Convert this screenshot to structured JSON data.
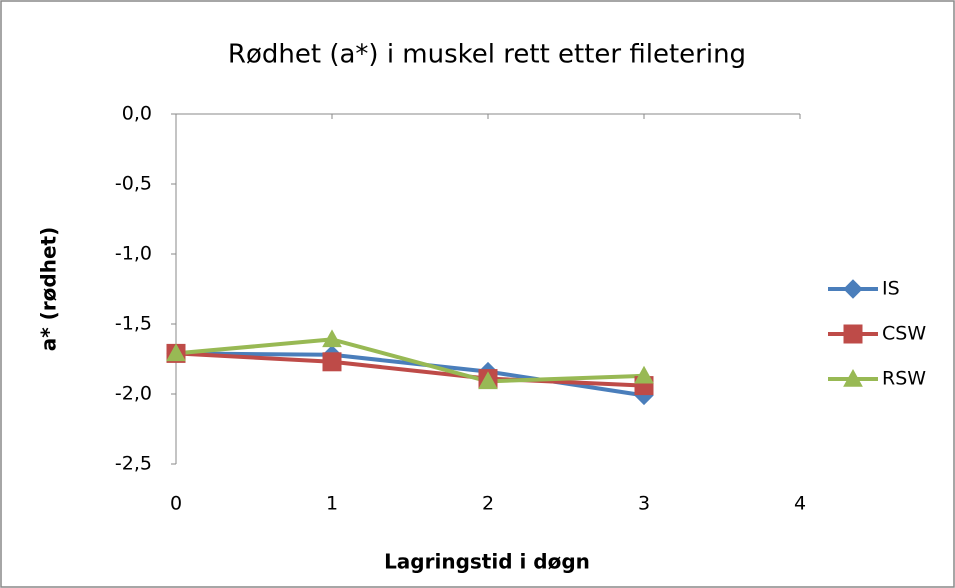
{
  "chart_data": {
    "type": "line",
    "title": "Rødhet (a*) i muskel rett etter filetering",
    "x_label": "Lagringstid i døgn",
    "y_label": "a* (rødhet)",
    "x": [
      0,
      1,
      2,
      3
    ],
    "series": [
      {
        "name": "IS",
        "color": "#4a7ebb",
        "marker": "diamond",
        "values": [
          -1.71,
          -1.72,
          -1.84,
          -2.01
        ]
      },
      {
        "name": "CSW",
        "color": "#be4b48",
        "marker": "square",
        "values": [
          -1.71,
          -1.77,
          -1.89,
          -1.94
        ]
      },
      {
        "name": "RSW",
        "color": "#98b954",
        "marker": "triangle",
        "values": [
          -1.71,
          -1.61,
          -1.91,
          -1.87
        ]
      }
    ],
    "xlim": [
      0,
      4
    ],
    "xticks": [
      0,
      1,
      2,
      3,
      4
    ],
    "ylim": [
      -2.5,
      0
    ],
    "yticks": [
      {
        "value": 0,
        "label": "0,0"
      },
      {
        "value": -0.5,
        "label": "-0,5"
      },
      {
        "value": -1,
        "label": "-1,0"
      },
      {
        "value": -1.5,
        "label": "-1,5"
      },
      {
        "value": -2,
        "label": "-2,0"
      },
      {
        "value": -2.5,
        "label": "-2,5"
      }
    ],
    "legend": "right"
  }
}
